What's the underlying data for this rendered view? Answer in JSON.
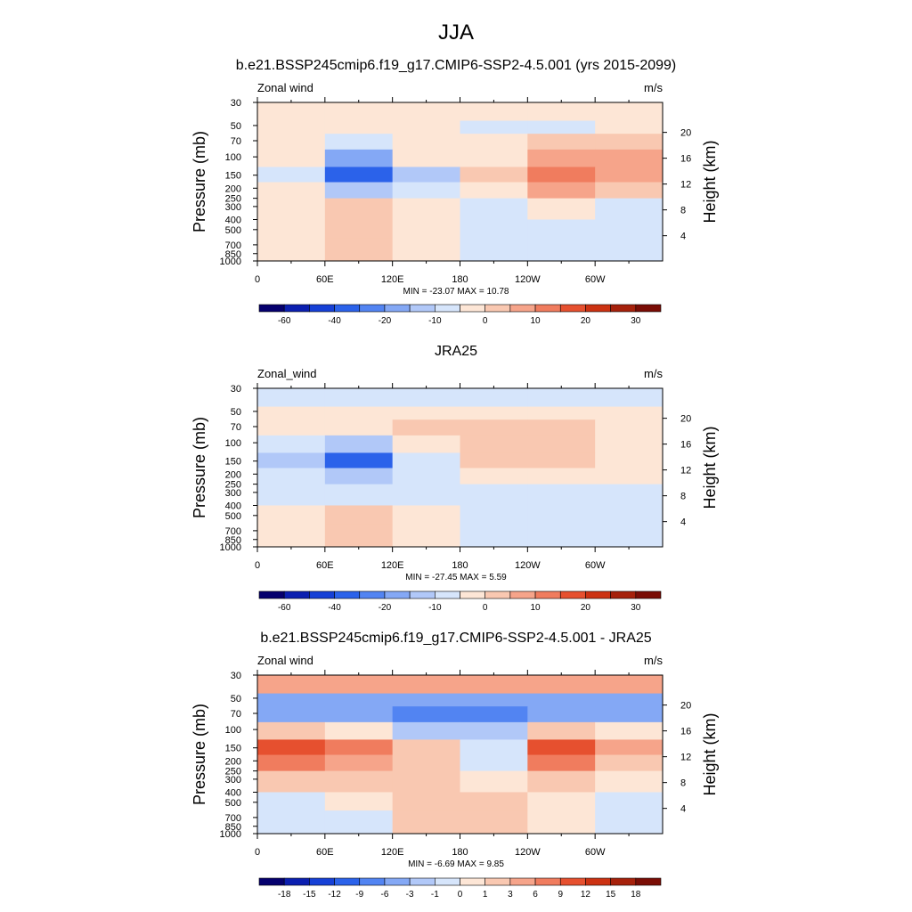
{
  "figure": {
    "title": "JJA",
    "cell_edges": [
      0,
      60,
      120,
      180,
      240,
      300,
      360
    ],
    "pressure_edges": [
      30,
      45,
      60,
      85,
      125,
      175,
      250,
      400,
      600,
      1000
    ]
  },
  "chart_data": [
    {
      "type": "heatmap",
      "title": "b.e21.BSSP245cmip6.f19_g17.CMIP6-SSP2-4.5.001 (yrs 2015-2099)",
      "variable": "Zonal wind",
      "units": "m/s",
      "x_ticks": [
        "0",
        "60E",
        "120E",
        "180",
        "120W",
        "60W"
      ],
      "x_values": [
        0,
        60,
        120,
        180,
        240,
        300
      ],
      "xlim": [
        0,
        360
      ],
      "y_ticks": [
        "30",
        "50",
        "70",
        "100",
        "150",
        "200",
        "250",
        "300",
        "400",
        "500",
        "700",
        "850",
        "1000"
      ],
      "y_values": [
        30,
        50,
        70,
        100,
        150,
        200,
        250,
        300,
        400,
        500,
        700,
        850,
        1000
      ],
      "ylim": [
        30,
        1000
      ],
      "y_scale": "log",
      "ylabel": "Pressure (mb)",
      "y2label": "Height (km)",
      "y2_ticks": [
        "4",
        "8",
        "12",
        "16",
        "20"
      ],
      "y2_values": [
        4,
        8,
        12,
        16,
        20
      ],
      "min_max_text": "MIN = -23.07  MAX =  10.78",
      "colorbar": {
        "labels": [
          "-60",
          "-40",
          "-20",
          "-10",
          "0",
          "10",
          "20",
          "30"
        ],
        "label_positions": [
          1,
          3,
          5,
          7,
          9,
          11,
          13,
          15
        ],
        "colors": [
          "#05006e",
          "#0b1fb0",
          "#1640d6",
          "#2b62ea",
          "#5284f2",
          "#84a8f5",
          "#b1c8f8",
          "#d6e5fb",
          "#fde6d6",
          "#f9c8b1",
          "#f6a48a",
          "#f07c5e",
          "#e6502f",
          "#cc3212",
          "#a6210b",
          "#7a0d05"
        ]
      },
      "grid": [
        [
          0,
          0,
          0,
          0,
          0,
          0
        ],
        [
          0,
          0,
          0,
          -1,
          -1,
          0
        ],
        [
          0,
          -1,
          0,
          0,
          1,
          1
        ],
        [
          0,
          -3,
          0,
          0,
          2,
          2
        ],
        [
          -1,
          -5,
          -2,
          1,
          3,
          2
        ],
        [
          0,
          -2,
          -1,
          0,
          2,
          1
        ],
        [
          0,
          1,
          0,
          -1,
          0,
          -1
        ],
        [
          0,
          1,
          0,
          -1,
          -1,
          -1
        ],
        [
          0,
          1,
          0,
          -1,
          -1,
          -1
        ]
      ]
    },
    {
      "type": "heatmap",
      "title": "JRA25",
      "variable": "Zonal_wind",
      "units": "m/s",
      "x_ticks": [
        "0",
        "60E",
        "120E",
        "180",
        "120W",
        "60W"
      ],
      "x_values": [
        0,
        60,
        120,
        180,
        240,
        300
      ],
      "xlim": [
        0,
        360
      ],
      "y_ticks": [
        "30",
        "50",
        "70",
        "100",
        "150",
        "200",
        "250",
        "300",
        "400",
        "500",
        "700",
        "850",
        "1000"
      ],
      "y_values": [
        30,
        50,
        70,
        100,
        150,
        200,
        250,
        300,
        400,
        500,
        700,
        850,
        1000
      ],
      "ylim": [
        30,
        1000
      ],
      "y_scale": "log",
      "ylabel": "Pressure (mb)",
      "y2label": "Height (km)",
      "y2_ticks": [
        "4",
        "8",
        "12",
        "16",
        "20"
      ],
      "y2_values": [
        4,
        8,
        12,
        16,
        20
      ],
      "min_max_text": "MIN = -27.45  MAX =   5.59",
      "colorbar": {
        "labels": [
          "-60",
          "-40",
          "-20",
          "-10",
          "0",
          "10",
          "20",
          "30"
        ],
        "label_positions": [
          1,
          3,
          5,
          7,
          9,
          11,
          13,
          15
        ],
        "colors": [
          "#05006e",
          "#0b1fb0",
          "#1640d6",
          "#2b62ea",
          "#5284f2",
          "#84a8f5",
          "#b1c8f8",
          "#d6e5fb",
          "#fde6d6",
          "#f9c8b1",
          "#f6a48a",
          "#f07c5e",
          "#e6502f",
          "#cc3212",
          "#a6210b",
          "#7a0d05"
        ]
      },
      "grid": [
        [
          -1,
          -1,
          -1,
          -1,
          -1,
          -1
        ],
        [
          0,
          0,
          0,
          0,
          0,
          0
        ],
        [
          0,
          0,
          1,
          1,
          1,
          0
        ],
        [
          -1,
          -2,
          0,
          1,
          1,
          0
        ],
        [
          -2,
          -5,
          -1,
          1,
          1,
          0
        ],
        [
          -1,
          -2,
          -1,
          0,
          0,
          0
        ],
        [
          -1,
          -1,
          -1,
          -1,
          -1,
          -1
        ],
        [
          0,
          1,
          0,
          -1,
          -1,
          -1
        ],
        [
          0,
          1,
          0,
          -1,
          -1,
          -1
        ]
      ]
    },
    {
      "type": "heatmap",
      "title": "b.e21.BSSP245cmip6.f19_g17.CMIP6-SSP2-4.5.001 - JRA25",
      "variable": "Zonal wind",
      "units": "m/s",
      "x_ticks": [
        "0",
        "60E",
        "120E",
        "180",
        "120W",
        "60W"
      ],
      "x_values": [
        0,
        60,
        120,
        180,
        240,
        300
      ],
      "xlim": [
        0,
        360
      ],
      "y_ticks": [
        "30",
        "50",
        "70",
        "100",
        "150",
        "200",
        "250",
        "300",
        "400",
        "500",
        "700",
        "850",
        "1000"
      ],
      "y_values": [
        30,
        50,
        70,
        100,
        150,
        200,
        250,
        300,
        400,
        500,
        700,
        850,
        1000
      ],
      "ylim": [
        30,
        1000
      ],
      "y_scale": "log",
      "ylabel": "Pressure (mb)",
      "y2label": "Height (km)",
      "y2_ticks": [
        "4",
        "8",
        "12",
        "16",
        "20"
      ],
      "y2_values": [
        4,
        8,
        12,
        16,
        20
      ],
      "min_max_text": "MIN =  -6.69  MAX =   9.85",
      "colorbar": {
        "labels": [
          "-18",
          "-15",
          "-12",
          "-9",
          "-6",
          "-3",
          "-1",
          "0",
          "1",
          "3",
          "6",
          "9",
          "12",
          "15",
          "18"
        ],
        "label_positions": [
          1,
          2,
          3,
          4,
          5,
          6,
          7,
          8,
          9,
          10,
          11,
          12,
          13,
          14,
          15
        ],
        "colors": [
          "#05006e",
          "#0b1fb0",
          "#1640d6",
          "#2b62ea",
          "#5284f2",
          "#84a8f5",
          "#b1c8f8",
          "#d6e5fb",
          "#fde6d6",
          "#f9c8b1",
          "#f6a48a",
          "#f07c5e",
          "#e6502f",
          "#cc3212",
          "#a6210b",
          "#7a0d05"
        ]
      },
      "grid": [
        [
          2,
          2,
          2,
          2,
          2,
          2
        ],
        [
          -3,
          -3,
          -3,
          -3,
          -3,
          -3
        ],
        [
          -3,
          -3,
          -4,
          -4,
          -3,
          -3
        ],
        [
          1,
          0,
          -2,
          -2,
          1,
          0
        ],
        [
          4,
          3,
          1,
          -1,
          4,
          2
        ],
        [
          3,
          2,
          1,
          -1,
          3,
          1
        ],
        [
          1,
          1,
          1,
          0,
          1,
          0
        ],
        [
          -1,
          0,
          1,
          1,
          0,
          -1
        ],
        [
          -1,
          -1,
          1,
          1,
          0,
          -1
        ]
      ]
    }
  ]
}
